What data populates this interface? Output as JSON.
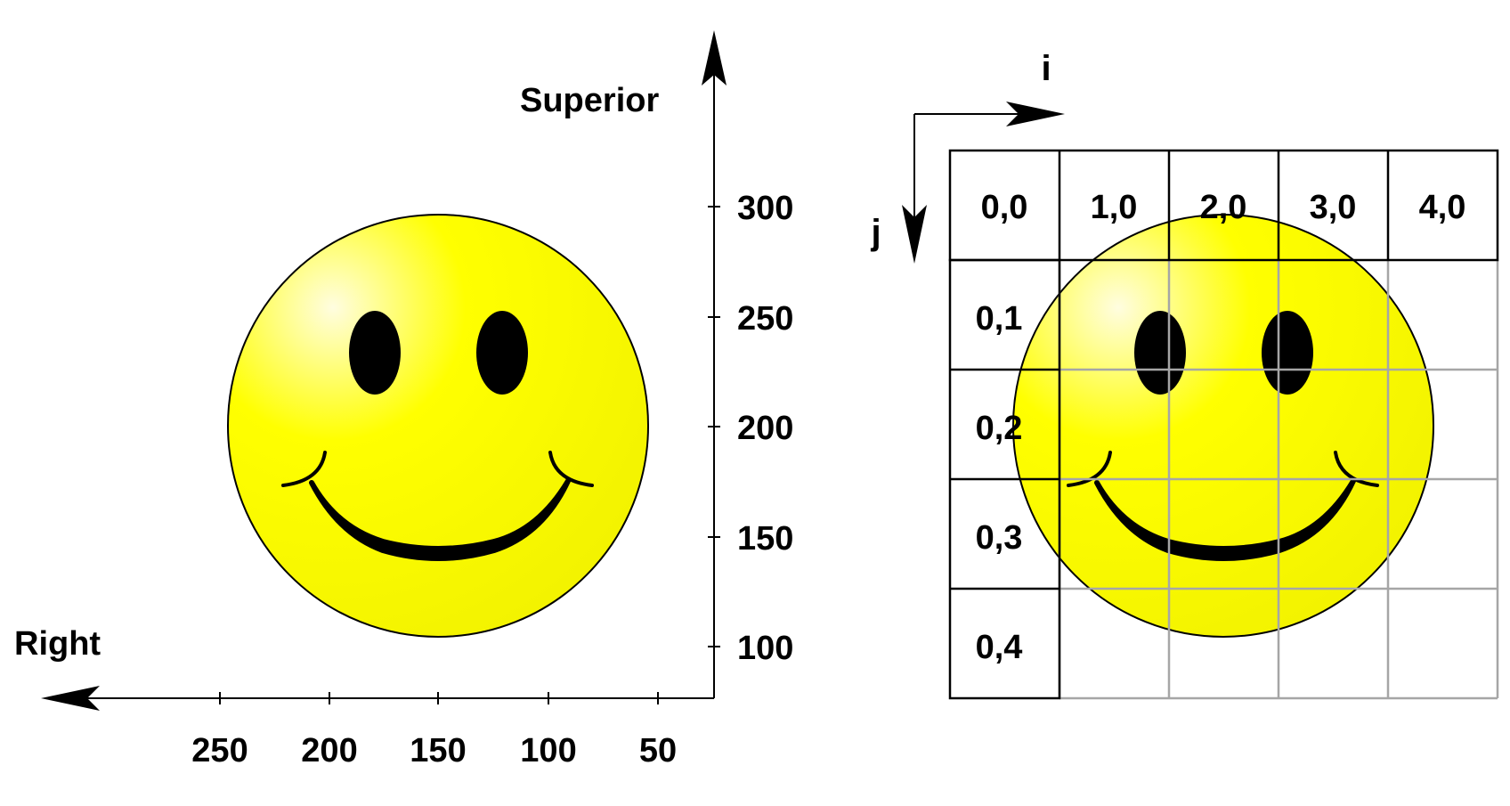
{
  "left_panel": {
    "vertical_axis_label": "Superior",
    "horizontal_axis_label": "Right",
    "vertical_ticks": [
      "300",
      "250",
      "200",
      "150",
      "100"
    ],
    "horizontal_ticks": [
      "250",
      "200",
      "150",
      "100",
      "50"
    ]
  },
  "right_panel": {
    "i_label": "i",
    "j_label": "j",
    "header_row": [
      "0,0",
      "1,0",
      "2,0",
      "3,0",
      "4,0"
    ],
    "first_column": [
      "0,1",
      "0,2",
      "0,3",
      "0,4"
    ]
  },
  "colors": {
    "face_fill": "#ffff00",
    "face_highlight": "#fffde0",
    "face_outline": "#000000",
    "grid_inner": "#a6a6a6",
    "grid_outer": "#000000"
  },
  "icons": [
    "smiley-face-icon",
    "smiley-face-icon"
  ]
}
